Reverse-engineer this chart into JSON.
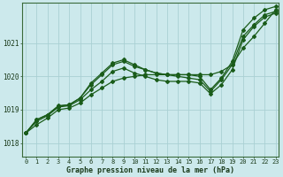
{
  "title": "Graphe pression niveau de la mer (hPa)",
  "background_color": "#cce9ec",
  "line_color": "#1a5c1a",
  "grid_color": "#aad0d4",
  "xlim": [
    -0.3,
    23.3
  ],
  "ylim": [
    1017.6,
    1022.2
  ],
  "yticks": [
    1018,
    1019,
    1020,
    1021
  ],
  "xticks": [
    0,
    1,
    2,
    3,
    4,
    5,
    6,
    7,
    8,
    9,
    10,
    11,
    12,
    13,
    14,
    15,
    16,
    17,
    18,
    19,
    20,
    21,
    22,
    23
  ],
  "series1": [
    1018.3,
    1018.7,
    1018.85,
    1019.1,
    1019.15,
    1019.35,
    1019.75,
    1020.05,
    1020.35,
    1020.45,
    1020.3,
    1020.2,
    1020.1,
    1020.05,
    1020.0,
    1019.95,
    1019.9,
    1019.55,
    1019.9,
    1020.35,
    1021.2,
    1021.55,
    1021.85,
    1021.95
  ],
  "series2": [
    1018.3,
    1018.7,
    1018.85,
    1019.12,
    1019.15,
    1019.35,
    1019.8,
    1020.1,
    1020.4,
    1020.5,
    1020.35,
    1020.2,
    1020.1,
    1020.05,
    1020.05,
    1020.05,
    1020.0,
    1019.6,
    1019.95,
    1020.45,
    1021.4,
    1021.75,
    1022.0,
    1022.1
  ],
  "series3": [
    1018.3,
    1018.55,
    1018.75,
    1019.0,
    1019.05,
    1019.2,
    1019.45,
    1019.65,
    1019.85,
    1019.95,
    1020.0,
    1020.05,
    1020.05,
    1020.05,
    1020.05,
    1020.05,
    1020.05,
    1020.05,
    1020.15,
    1020.35,
    1020.85,
    1021.2,
    1021.6,
    1022.0
  ],
  "series4": [
    1018.3,
    1018.65,
    1018.82,
    1019.08,
    1019.12,
    1019.3,
    1019.6,
    1019.85,
    1020.15,
    1020.25,
    1020.1,
    1020.0,
    1019.9,
    1019.85,
    1019.85,
    1019.85,
    1019.8,
    1019.48,
    1019.75,
    1020.2,
    1021.1,
    1021.5,
    1021.78,
    1021.9
  ]
}
